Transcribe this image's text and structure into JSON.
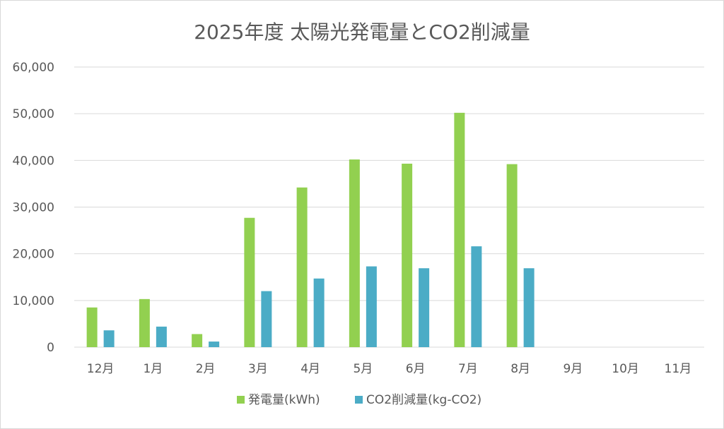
{
  "chart_data": {
    "type": "bar",
    "title": "2025年度 太陽光発電量とCO2削減量",
    "categories": [
      "12月",
      "1月",
      "2月",
      "3月",
      "4月",
      "5月",
      "6月",
      "7月",
      "8月",
      "9月",
      "10月",
      "11月"
    ],
    "series": [
      {
        "name": "発電量(kWh)",
        "color": "#92d050",
        "values": [
          8500,
          10300,
          2800,
          27700,
          34200,
          40200,
          39300,
          50200,
          39200,
          null,
          null,
          null
        ]
      },
      {
        "name": "CO2削減量(kg-CO2)",
        "color": "#4bacc6",
        "values": [
          3600,
          4400,
          1200,
          12000,
          14700,
          17300,
          16900,
          21600,
          16900,
          null,
          null,
          null
        ]
      }
    ],
    "y_ticks": [
      "0",
      "10,000",
      "20,000",
      "30,000",
      "40,000",
      "50,000",
      "60,000"
    ],
    "ylim": [
      0,
      60000
    ],
    "grid": true,
    "legend_position": "bottom"
  }
}
